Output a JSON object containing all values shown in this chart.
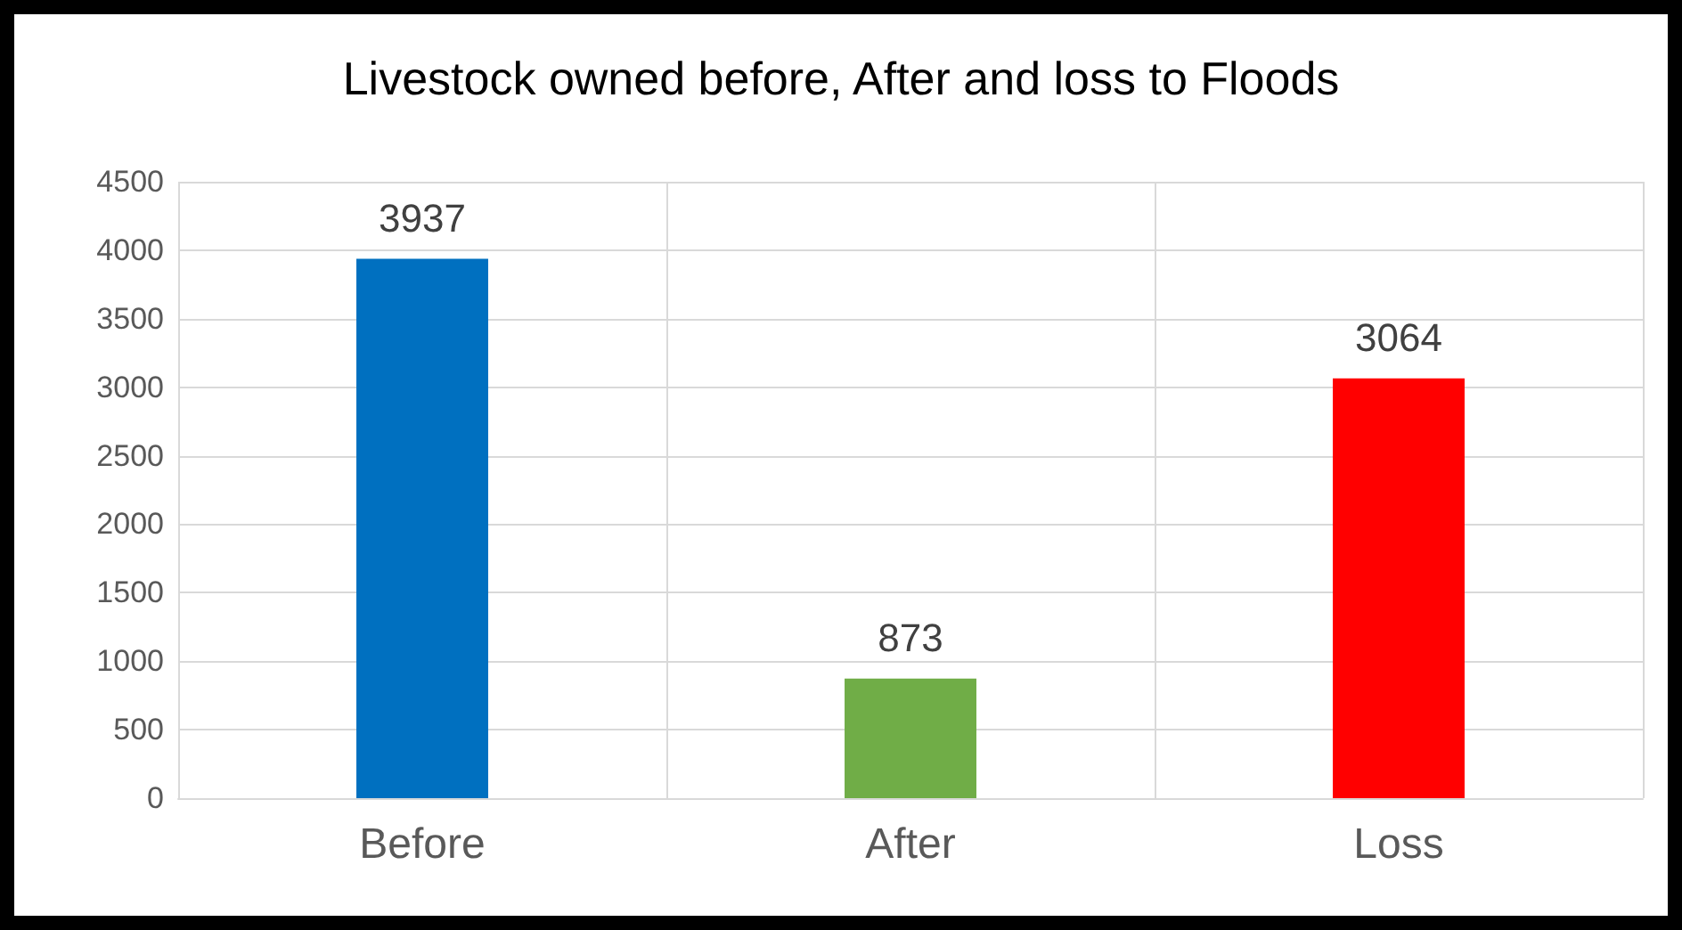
{
  "chart_data": {
    "type": "bar",
    "title": "Livestock owned before, After and loss to Floods",
    "categories": [
      "Before",
      "After",
      "Loss"
    ],
    "values": [
      3937,
      873,
      3064
    ],
    "colors": [
      "#0070c0",
      "#70ad47",
      "#ff0000"
    ],
    "ylim": [
      0,
      4500
    ],
    "yticks": [
      0,
      500,
      1000,
      1500,
      2000,
      2500,
      3000,
      3500,
      4000,
      4500
    ],
    "grid": true,
    "data_labels": true
  }
}
